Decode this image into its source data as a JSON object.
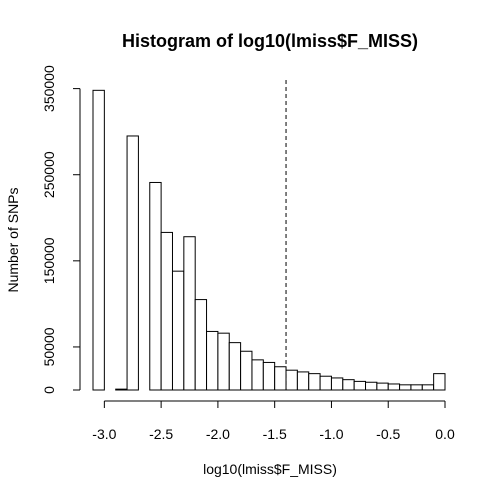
{
  "chart_data": {
    "type": "bar",
    "title": "Histogram of log10(lmiss$F_MISS)",
    "xlabel": "log10(lmiss$F_MISS)",
    "ylabel": "Number of SNPs",
    "xlim": [
      -3.1,
      0.0
    ],
    "ylim": [
      0,
      360000
    ],
    "bin_width": 0.1,
    "bins": [
      {
        "x0": -3.1,
        "x1": -3.0,
        "count": 348000
      },
      {
        "x0": -3.0,
        "x1": -2.9,
        "count": 0
      },
      {
        "x0": -2.9,
        "x1": -2.8,
        "count": 1000
      },
      {
        "x0": -2.8,
        "x1": -2.7,
        "count": 295000
      },
      {
        "x0": -2.7,
        "x1": -2.6,
        "count": 0
      },
      {
        "x0": -2.6,
        "x1": -2.5,
        "count": 241000
      },
      {
        "x0": -2.5,
        "x1": -2.4,
        "count": 183000
      },
      {
        "x0": -2.4,
        "x1": -2.3,
        "count": 138000
      },
      {
        "x0": -2.3,
        "x1": -2.2,
        "count": 178000
      },
      {
        "x0": -2.2,
        "x1": -2.1,
        "count": 105000
      },
      {
        "x0": -2.1,
        "x1": -2.0,
        "count": 68000
      },
      {
        "x0": -2.0,
        "x1": -1.9,
        "count": 66000
      },
      {
        "x0": -1.9,
        "x1": -1.8,
        "count": 55000
      },
      {
        "x0": -1.8,
        "x1": -1.7,
        "count": 45000
      },
      {
        "x0": -1.7,
        "x1": -1.6,
        "count": 35000
      },
      {
        "x0": -1.6,
        "x1": -1.5,
        "count": 32000
      },
      {
        "x0": -1.5,
        "x1": -1.4,
        "count": 27000
      },
      {
        "x0": -1.4,
        "x1": -1.3,
        "count": 23000
      },
      {
        "x0": -1.3,
        "x1": -1.2,
        "count": 21000
      },
      {
        "x0": -1.2,
        "x1": -1.1,
        "count": 19000
      },
      {
        "x0": -1.1,
        "x1": -1.0,
        "count": 16000
      },
      {
        "x0": -1.0,
        "x1": -0.9,
        "count": 14000
      },
      {
        "x0": -0.9,
        "x1": -0.8,
        "count": 12000
      },
      {
        "x0": -0.8,
        "x1": -0.7,
        "count": 10000
      },
      {
        "x0": -0.7,
        "x1": -0.6,
        "count": 9000
      },
      {
        "x0": -0.6,
        "x1": -0.5,
        "count": 8000
      },
      {
        "x0": -0.5,
        "x1": -0.4,
        "count": 7000
      },
      {
        "x0": -0.4,
        "x1": -0.3,
        "count": 6000
      },
      {
        "x0": -0.3,
        "x1": -0.2,
        "count": 6000
      },
      {
        "x0": -0.2,
        "x1": -0.1,
        "count": 6000
      },
      {
        "x0": -0.1,
        "x1": 0.0,
        "count": 19000
      }
    ],
    "threshold_line": {
      "x": -1.4,
      "style": "dashed"
    },
    "x_ticks": [
      {
        "value": -3.0,
        "label": "-3.0"
      },
      {
        "value": -2.5,
        "label": "-2.5"
      },
      {
        "value": -2.0,
        "label": "-2.0"
      },
      {
        "value": -1.5,
        "label": "-1.5"
      },
      {
        "value": -1.0,
        "label": "-1.0"
      },
      {
        "value": -0.5,
        "label": "-0.5"
      },
      {
        "value": 0.0,
        "label": "0.0"
      }
    ],
    "y_ticks": [
      {
        "value": 0,
        "label": "0"
      },
      {
        "value": 50000,
        "label": "50000"
      },
      {
        "value": 150000,
        "label": "150000"
      },
      {
        "value": 250000,
        "label": "250000"
      },
      {
        "value": 350000,
        "label": "350000"
      }
    ],
    "grid": false,
    "legend": "none"
  }
}
